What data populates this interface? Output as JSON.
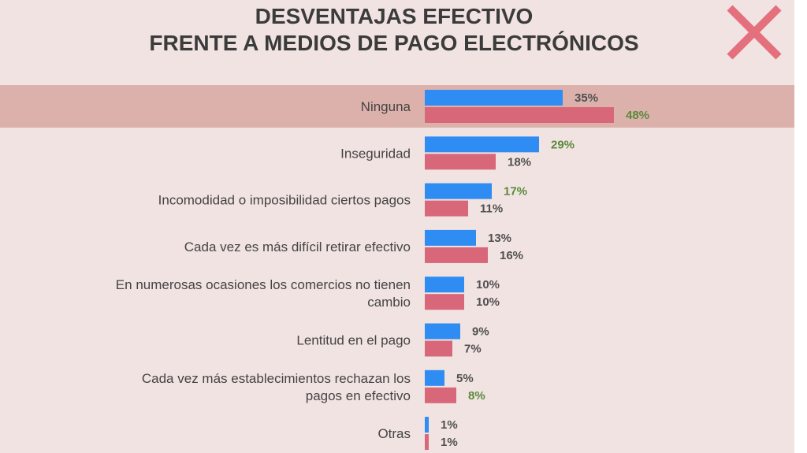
{
  "header": {
    "title_line1": "DESVENTAJAS EFECTIVO",
    "title_line2": "FRENTE A MEDIOS DE PAGO ELECTRÓNICOS",
    "icon": "close-x-icon"
  },
  "colors": {
    "background": "#f1e3e1",
    "highlight_band": "#dcb1ac",
    "series_blue": "#2e8cf2",
    "series_red": "#d9677a",
    "highlight_label": "#5a8a3a",
    "x_icon": "#e46f7d"
  },
  "chart_data": {
    "type": "bar",
    "orientation": "horizontal",
    "title": "DESVENTAJAS EFECTIVO FRENTE A MEDIOS DE PAGO ELECTRÓNICOS",
    "categories": [
      "Ninguna",
      "Inseguridad",
      "Incomodidad o imposibilidad ciertos pagos",
      "Cada vez es más difícil retirar efectivo",
      "En numerosas ocasiones los comercios no tienen cambio",
      "Lentitud en el pago",
      "Cada vez más establecimientos rechazan los pagos en efectivo",
      "Otras"
    ],
    "category_lines": [
      [
        "Ninguna"
      ],
      [
        "Inseguridad"
      ],
      [
        "Incomodidad o imposibilidad ciertos pagos"
      ],
      [
        "Cada vez es más difícil retirar efectivo"
      ],
      [
        "En numerosas ocasiones los comercios no tienen",
        "cambio"
      ],
      [
        "Lentitud en el pago"
      ],
      [
        "Cada vez más establecimientos rechazan los",
        "pagos en efectivo"
      ],
      [
        "Otras"
      ]
    ],
    "series": [
      {
        "color": "#2e8cf2",
        "values": [
          35,
          29,
          17,
          13,
          10,
          9,
          5,
          1
        ],
        "labels": [
          "35%",
          "29%",
          "17%",
          "13%",
          "10%",
          "9%",
          "5%",
          "1%"
        ],
        "highlighted": [
          false,
          true,
          true,
          false,
          false,
          false,
          false,
          false
        ]
      },
      {
        "color": "#d9677a",
        "values": [
          48,
          18,
          11,
          16,
          10,
          7,
          8,
          1
        ],
        "labels": [
          "48%",
          "18%",
          "11%",
          "16%",
          "10%",
          "7%",
          "8%",
          "1%"
        ],
        "highlighted": [
          true,
          false,
          false,
          false,
          false,
          false,
          true,
          false
        ]
      }
    ],
    "highlighted_category": "Ninguna",
    "grid": false,
    "legend": "none"
  }
}
